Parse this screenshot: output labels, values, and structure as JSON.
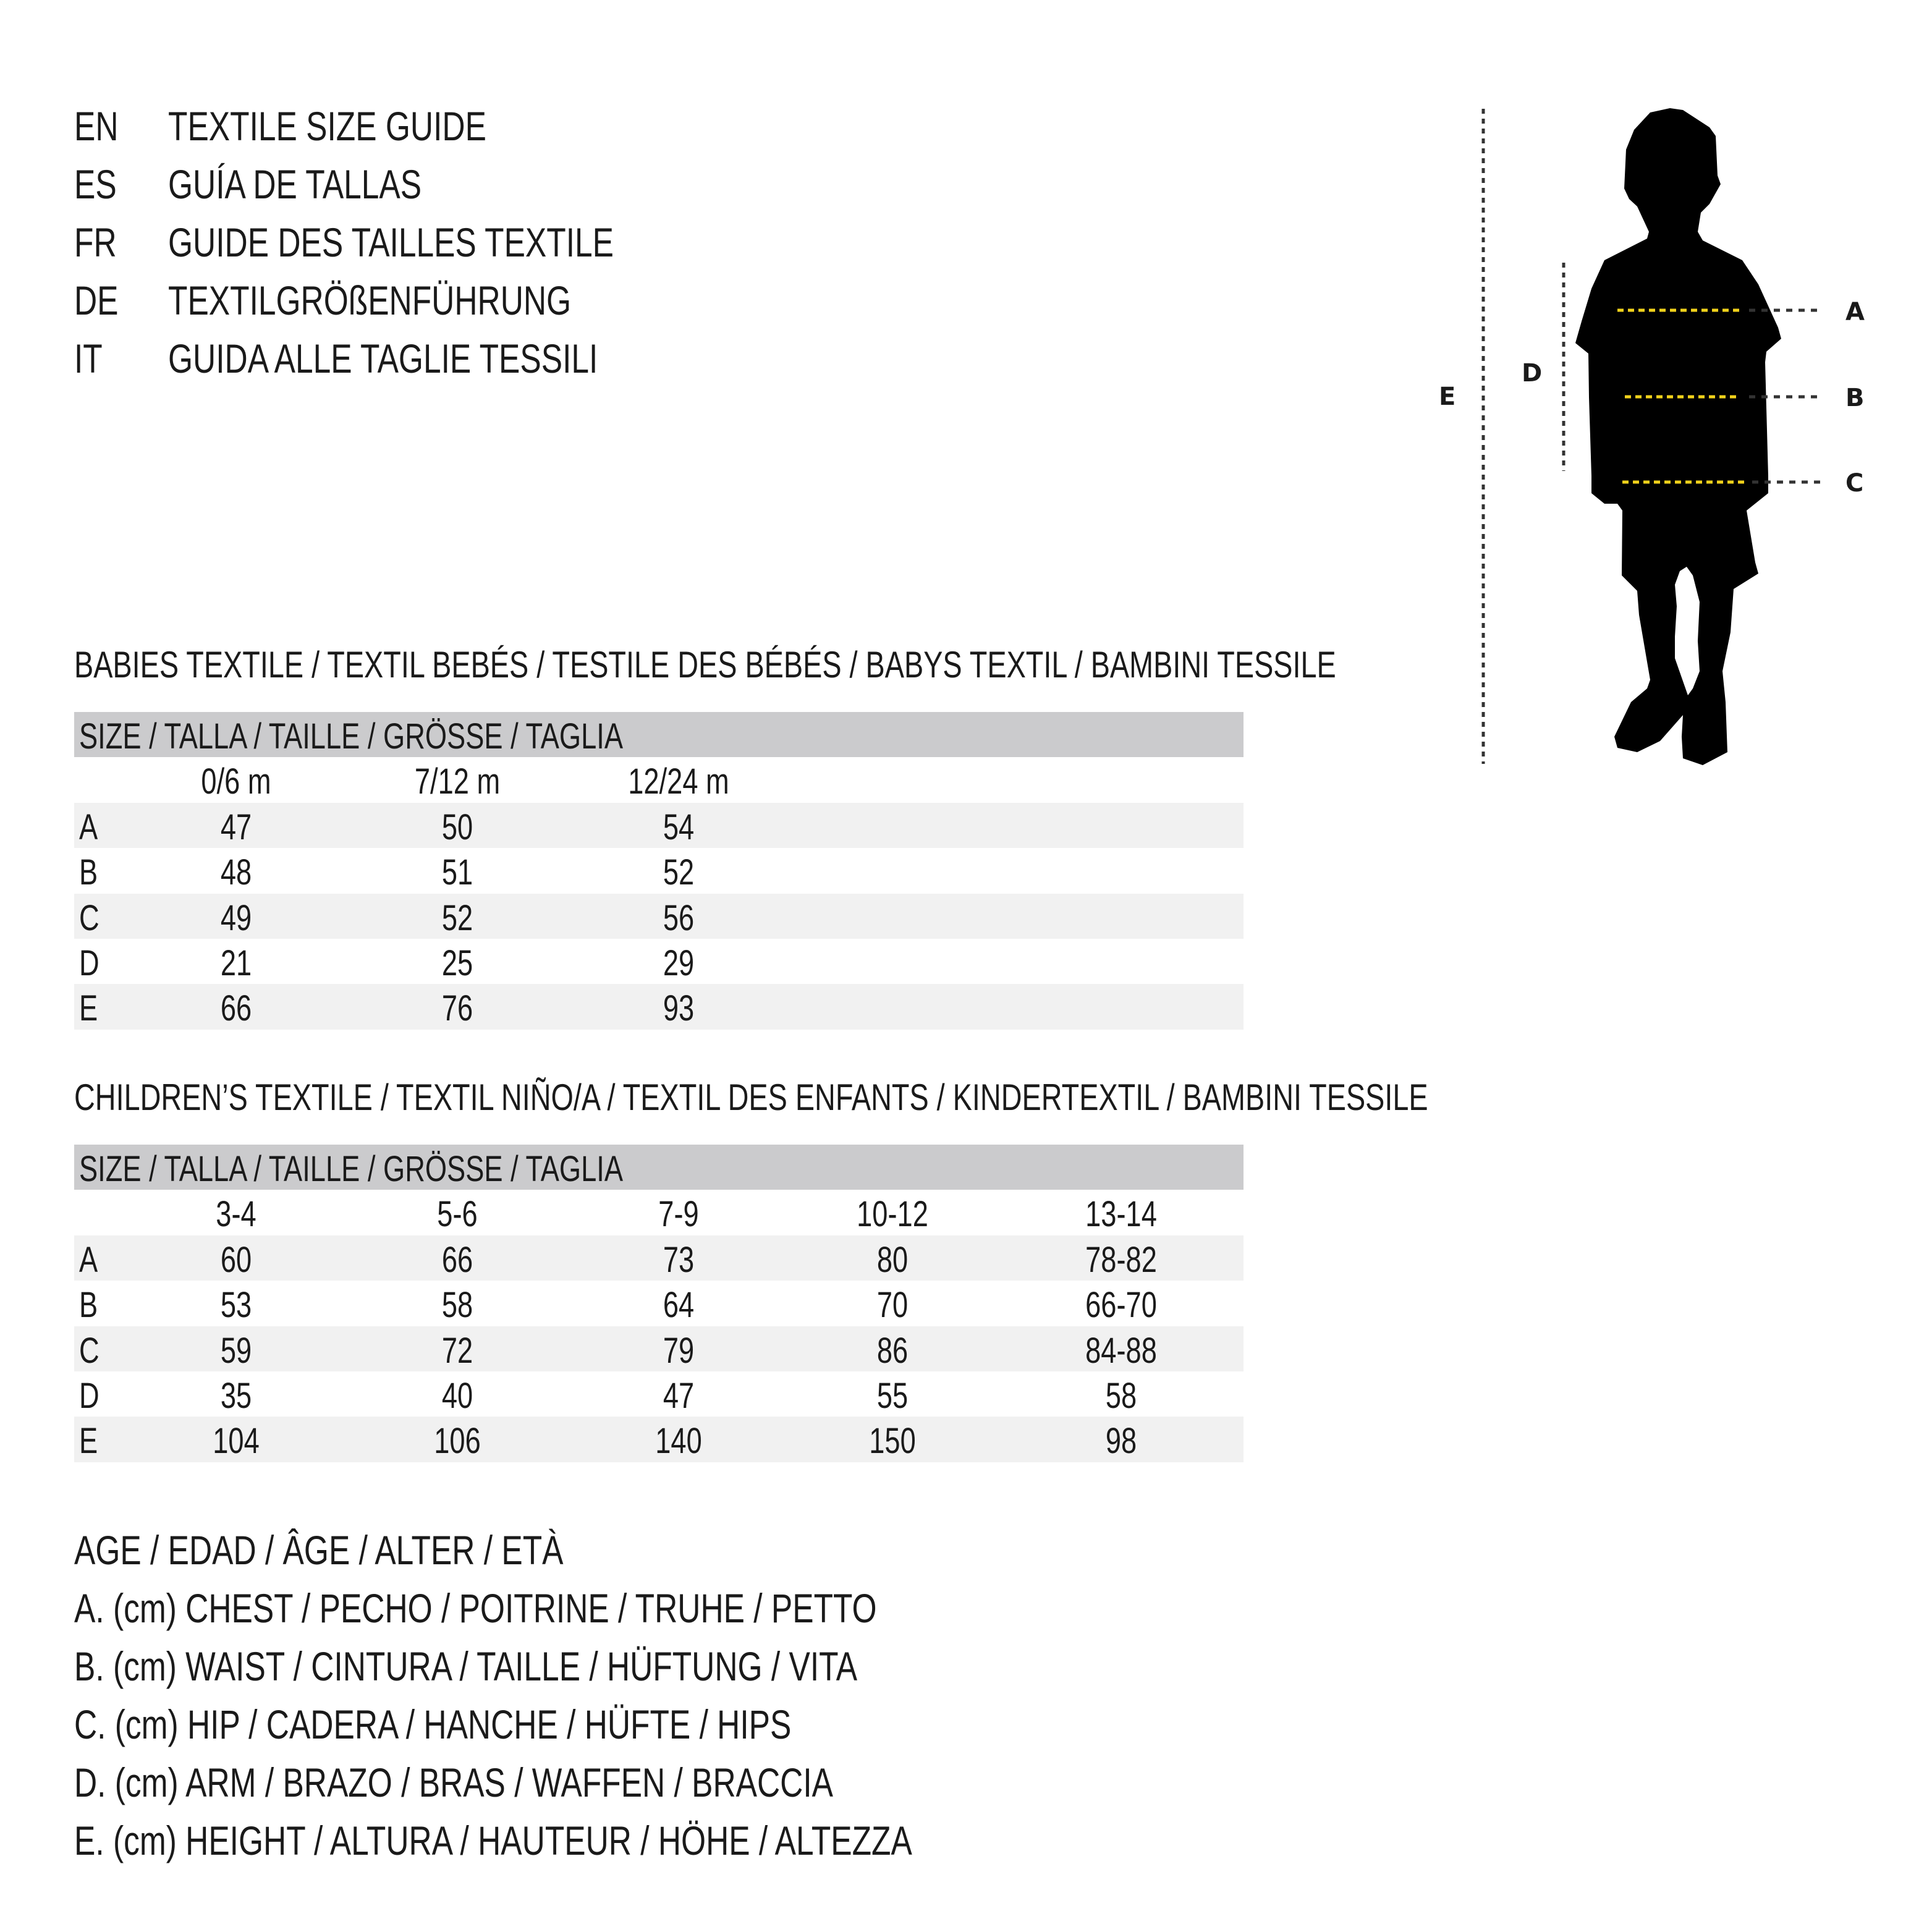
{
  "guide_titles": [
    {
      "code": "EN",
      "text": "TEXTILE SIZE GUIDE"
    },
    {
      "code": "ES",
      "text": "GUÍA DE TALLAS"
    },
    {
      "code": "FR",
      "text": "GUIDE DES TAILLES TEXTILE"
    },
    {
      "code": "DE",
      "text": "TEXTILGRÖßENFÜHRUNG"
    },
    {
      "code": "IT",
      "text": "GUIDA ALLE TAGLIE TESSILI"
    }
  ],
  "babies": {
    "title": "BABIES TEXTILE / TEXTIL BEBÉS / TESTILE DES BÉBÉS / BABYS TEXTIL / BAMBINI TESSILE",
    "size_header": "SIZE / TALLA / TAILLE / GRÖSSE / TAGLIA",
    "columns": [
      "0/6 m",
      "7/12 m",
      "12/24 m"
    ],
    "rows": [
      {
        "label": "A",
        "values": [
          "47",
          "50",
          "54"
        ]
      },
      {
        "label": "B",
        "values": [
          "48",
          "51",
          "52"
        ]
      },
      {
        "label": "C",
        "values": [
          "49",
          "52",
          "56"
        ]
      },
      {
        "label": "D",
        "values": [
          "21",
          "25",
          "29"
        ]
      },
      {
        "label": "E",
        "values": [
          "66",
          "76",
          "93"
        ]
      }
    ]
  },
  "children": {
    "title": "CHILDREN’S TEXTILE / TEXTIL NIÑO/A / TEXTIL DES ENFANTS / KINDERTEXTIL / BAMBINI TESSILE",
    "size_header": "SIZE / TALLA / TAILLE / GRÖSSE / TAGLIA",
    "columns": [
      "3-4",
      "5-6",
      "7-9",
      "10-12",
      "13-14"
    ],
    "rows": [
      {
        "label": "A",
        "values": [
          "60",
          "66",
          "73",
          "80",
          "78-82"
        ]
      },
      {
        "label": "B",
        "values": [
          "53",
          "58",
          "64",
          "70",
          "66-70"
        ]
      },
      {
        "label": "C",
        "values": [
          "59",
          "72",
          "79",
          "86",
          "84-88"
        ]
      },
      {
        "label": "D",
        "values": [
          "35",
          "40",
          "47",
          "55",
          "58"
        ]
      },
      {
        "label": "E",
        "values": [
          "104",
          "106",
          "140",
          "150",
          "98"
        ]
      }
    ]
  },
  "legend": [
    "AGE / EDAD / ÂGE / ALTER / ETÀ",
    "A. (cm) CHEST / PECHO / POITRINE / TRUHE / PETTO",
    "B. (cm) WAIST / CINTURA / TAILLE / HÜFTUNG / VITA",
    "C. (cm) HIP / CADERA / HANCHE / HÜFTE / HIPS",
    "D. (cm) ARM / BRAZO / BRAS / WAFFEN / BRACCIA",
    "E. (cm) HEIGHT / ALTURA / HAUTEUR / HÖHE / ALTEZZA"
  ],
  "figure": {
    "labels": {
      "a": "A",
      "b": "B",
      "c": "C",
      "d": "D",
      "e": "E"
    },
    "colors": {
      "silhouette": "#000000",
      "measure_line": "#f2d21b",
      "guide_line": "#333333",
      "header_bg": "#cbcbcd",
      "row_shade": "#f1f1f1"
    }
  }
}
